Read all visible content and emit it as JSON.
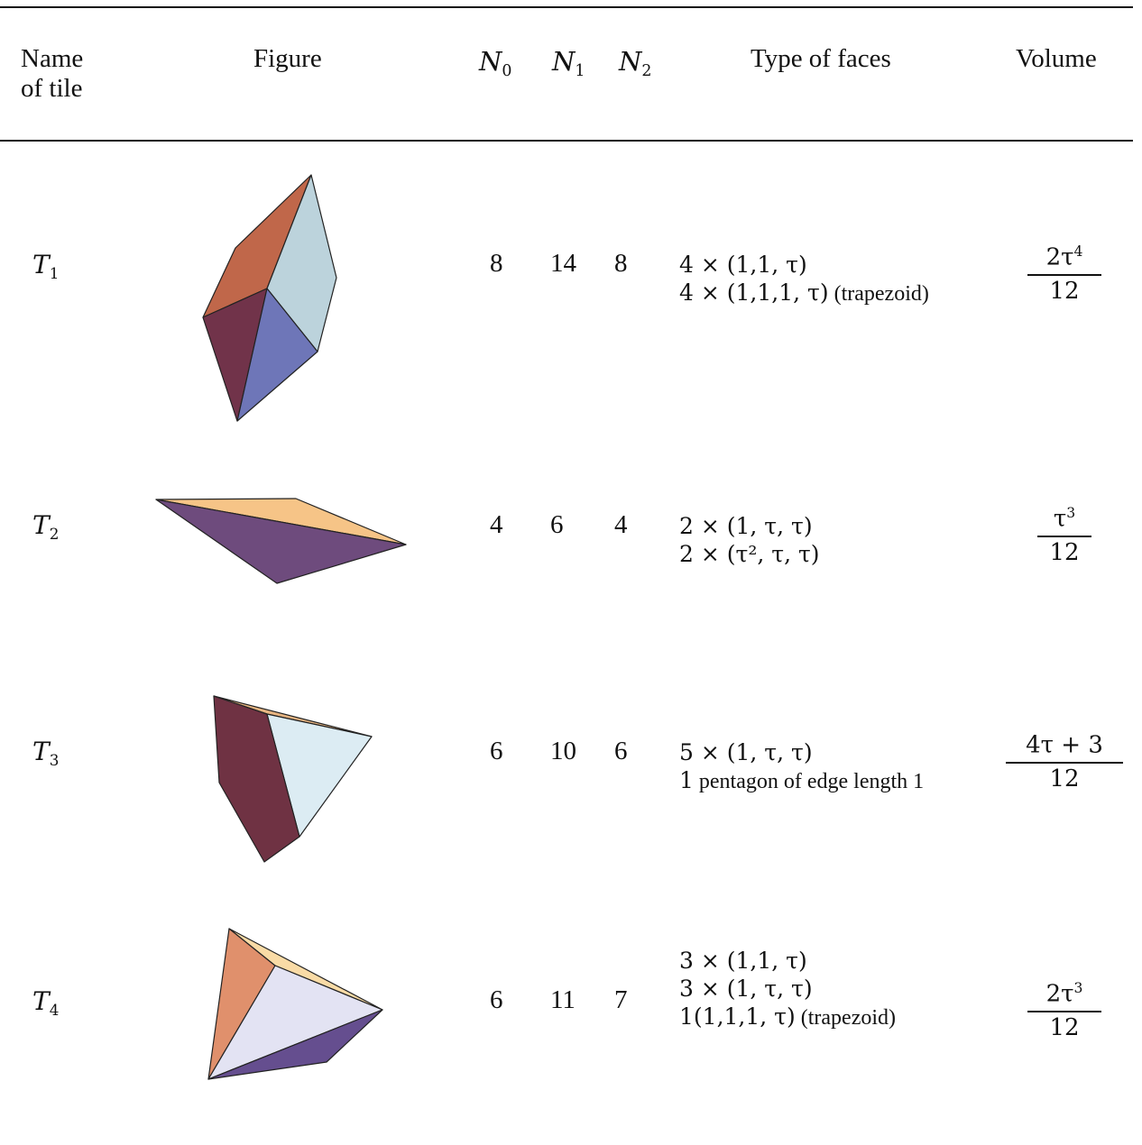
{
  "header": {
    "name_line1": "Name",
    "name_line2": "of tile",
    "figure": "Figure",
    "n0": "N",
    "n0_sub": "0",
    "n1": "N",
    "n1_sub": "1",
    "n2": "N",
    "n2_sub": "2",
    "faces": "Type of faces",
    "volume": "Volume"
  },
  "rows": [
    {
      "name": "T",
      "name_sub": "1",
      "n0": "8",
      "n1": "14",
      "n2": "8",
      "faces": [
        {
          "math": "4 × (1,1, τ)",
          "note": ""
        },
        {
          "math": "4 × (1,1,1, τ)",
          "note": " (trapezoid)"
        }
      ],
      "vol_num": "2τ",
      "vol_num_sup": "4",
      "vol_den": "12",
      "colors": [
        "#c0674a",
        "#bcd3dc",
        "#71334a",
        "#6e76b8"
      ]
    },
    {
      "name": "T",
      "name_sub": "2",
      "n0": "4",
      "n1": "6",
      "n2": "4",
      "faces": [
        {
          "math": "2 × (1, τ, τ)",
          "note": ""
        },
        {
          "math": "2 × (τ², τ, τ)",
          "note": ""
        }
      ],
      "vol_num": "τ",
      "vol_num_sup": "3",
      "vol_den": "12",
      "colors": [
        "#f6c487",
        "#6e4b7d"
      ]
    },
    {
      "name": "T",
      "name_sub": "3",
      "n0": "6",
      "n1": "10",
      "n2": "6",
      "faces": [
        {
          "math": "5 × (1, τ, τ)",
          "note": ""
        },
        {
          "math": "1",
          "note": " pentagon of edge length 1"
        }
      ],
      "vol_num": "4τ + 3",
      "vol_num_sup": "",
      "vol_den": "12",
      "colors": [
        "#e7b582",
        "#dcecf3",
        "#6f3243"
      ]
    },
    {
      "name": "T",
      "name_sub": "4",
      "n0": "6",
      "n1": "11",
      "n2": "7",
      "faces": [
        {
          "math": "3 × (1,1, τ)",
          "note": ""
        },
        {
          "math": "3 × (1, τ, τ)",
          "note": ""
        },
        {
          "math": "1(1,1,1, τ)",
          "note": " (trapezoid)"
        }
      ],
      "vol_num": "2τ",
      "vol_num_sup": "3",
      "vol_den": "12",
      "colors": [
        "#e0906c",
        "#f9dba6",
        "#e3e3f3",
        "#654e8f"
      ]
    }
  ]
}
